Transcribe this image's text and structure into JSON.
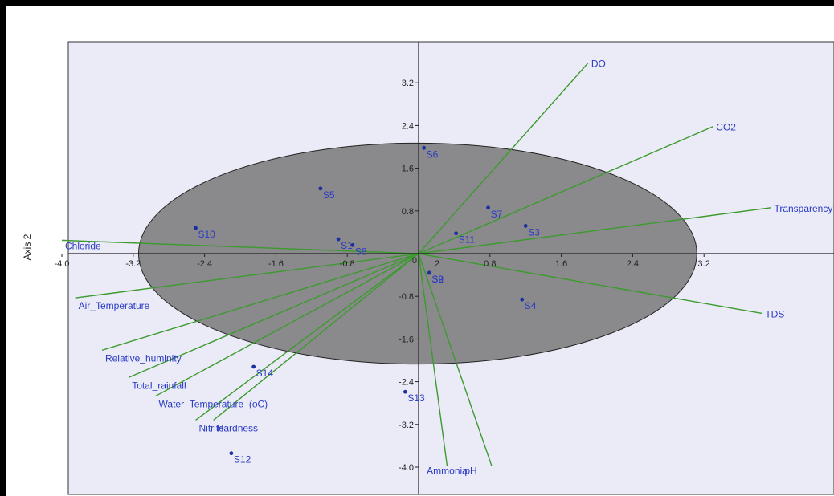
{
  "chart_data": {
    "type": "scatter",
    "subtype": "pca-biplot",
    "title": "",
    "xlabel": "",
    "ylabel": "Axis 2",
    "xlim": [
      -4.0,
      3.7
    ],
    "ylim": [
      -4.0,
      4.3
    ],
    "grid": false,
    "x_ticks": [
      -4.0,
      -3.2,
      -2.4,
      -1.6,
      -0.8,
      0.8,
      1.6,
      2.4,
      3.2
    ],
    "x_tick_labels": [
      "-4.0",
      "-3.2",
      "-2.4",
      "-1.6",
      "-0.8",
      "0.8",
      "1.6",
      "2.4",
      "3.2"
    ],
    "y_ticks": [
      3.2,
      2.4,
      1.6,
      0.8,
      -0.8,
      -1.6,
      -2.4,
      -3.2,
      -4.0
    ],
    "y_tick_labels": [
      "3.2",
      "2.4",
      "1.6",
      "0.8",
      "-0.8",
      "-1.6",
      "-2.4",
      "-3.2",
      "-4.0"
    ],
    "origin_labels": [
      "0",
      "2"
    ],
    "ellipse": {
      "center": [
        -0.01,
        0.0
      ],
      "rx": 3.13,
      "ry": 2.07,
      "fill": "#808080",
      "opacity": 0.9
    },
    "points": [
      {
        "label": "S1",
        "x": -0.9,
        "y": 0.27
      },
      {
        "label": "S2",
        "x": 0.12,
        "y": -0.36
      },
      {
        "label": "S3",
        "x": 1.2,
        "y": 0.52
      },
      {
        "label": "S4",
        "x": 1.16,
        "y": -0.86
      },
      {
        "label": "S5",
        "x": -1.1,
        "y": 1.22
      },
      {
        "label": "S6",
        "x": 0.06,
        "y": 1.98
      },
      {
        "label": "S7",
        "x": 0.78,
        "y": 0.86
      },
      {
        "label": "S8",
        "x": -0.74,
        "y": 0.16
      },
      {
        "label": "S9",
        "x": 0.12,
        "y": -0.36
      },
      {
        "label": "S10",
        "x": -2.5,
        "y": 0.48
      },
      {
        "label": "S11",
        "x": 0.42,
        "y": 0.38
      },
      {
        "label": "S12",
        "x": -2.1,
        "y": -3.74
      },
      {
        "label": "S13",
        "x": -0.15,
        "y": -2.59
      },
      {
        "label": "S14",
        "x": -1.85,
        "y": -2.12
      }
    ],
    "vectors": [
      {
        "label": "DO",
        "x": 1.9,
        "y": 3.57
      },
      {
        "label": "CO2",
        "x": 3.3,
        "y": 2.38
      },
      {
        "label": "Transparency",
        "x": 3.95,
        "y": 0.86
      },
      {
        "label": "TDS",
        "x": 3.85,
        "y": -1.12
      },
      {
        "label": "Chloride",
        "x": -4.0,
        "y": 0.25
      },
      {
        "label": "Air_Temperature",
        "x": -3.85,
        "y": -0.83
      },
      {
        "label": "Relative_huminity",
        "x": -3.55,
        "y": -1.81
      },
      {
        "label": "Total_rainfall",
        "x": -3.25,
        "y": -2.32
      },
      {
        "label": "Water_Temperature_(oC)",
        "x": -2.95,
        "y": -2.67
      },
      {
        "label": "Nitrite",
        "x": -2.5,
        "y": -3.12
      },
      {
        "label": "Hardness",
        "x": -2.3,
        "y": -3.12
      },
      {
        "label": "Ammonia",
        "x": 0.32,
        "y": -3.98
      },
      {
        "label": "pH",
        "x": 0.82,
        "y": -3.98
      }
    ],
    "colors": {
      "point": "#1b2fa0",
      "label": "#2a3bc4",
      "vector": "#3c9a2e",
      "plot_bg": "#ebebf7",
      "axis": "#202020"
    }
  }
}
